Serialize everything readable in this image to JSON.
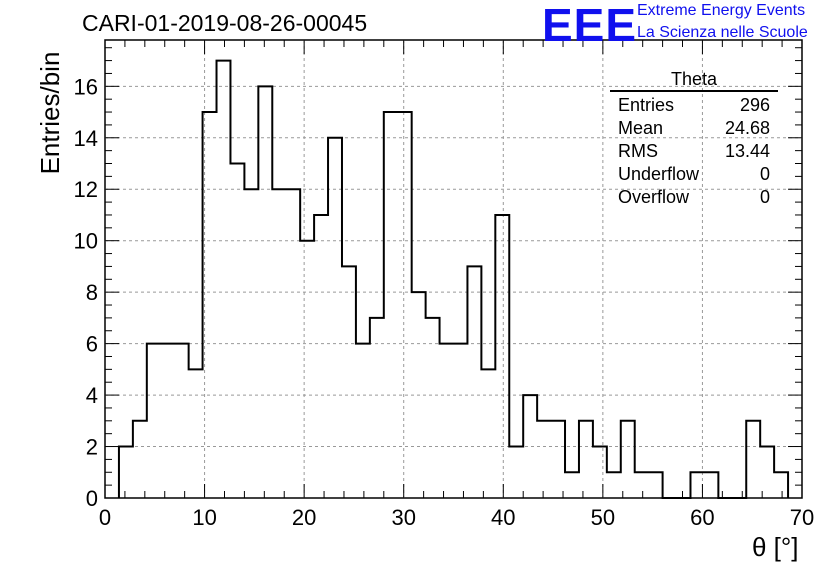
{
  "title": "CARI-01-2019-08-26-00045",
  "logo": {
    "mark": "EEE",
    "line1": "Extreme Energy Events",
    "line2": "La Scienza nelle Scuole"
  },
  "stats": {
    "name": "Theta",
    "rows": [
      {
        "label": "Entries",
        "value": "296"
      },
      {
        "label": "Mean",
        "value": "24.68"
      },
      {
        "label": "RMS",
        "value": "13.44"
      },
      {
        "label": "Underflow",
        "value": "0"
      },
      {
        "label": "Overflow",
        "value": "0"
      }
    ]
  },
  "chart_data": {
    "type": "bar",
    "style": "step-histogram",
    "title": "CARI-01-2019-08-26-00045",
    "xlabel": "θ [°]",
    "ylabel": "Entries/bin",
    "xlim": [
      0,
      70
    ],
    "ylim": [
      0,
      17.8
    ],
    "xticks": [
      0,
      10,
      20,
      30,
      40,
      50,
      60,
      70
    ],
    "yticks": [
      0,
      2,
      4,
      6,
      8,
      10,
      12,
      14,
      16
    ],
    "grid": true,
    "bin_edges": [
      1.4,
      2.8,
      4.2,
      5.6,
      7.0,
      8.4,
      9.8,
      11.2,
      12.6,
      14.0,
      15.4,
      16.8,
      18.2,
      19.6,
      21.0,
      22.4,
      23.8,
      25.2,
      26.6,
      28.0,
      29.4,
      30.8,
      32.2,
      33.6,
      35.0,
      36.4,
      37.8,
      39.2,
      40.6,
      42.0,
      43.4,
      44.8,
      46.2,
      47.6,
      49.0,
      50.4,
      51.8,
      53.2,
      54.6,
      56.0,
      57.4,
      58.8,
      60.2,
      61.6,
      63.0,
      64.4,
      65.8,
      67.2,
      68.6
    ],
    "values": [
      2,
      3,
      6,
      6,
      6,
      5,
      15,
      17,
      13,
      12,
      16,
      12,
      12,
      10,
      11,
      14,
      9,
      6,
      7,
      15,
      15,
      8,
      7,
      6,
      6,
      9,
      5,
      11,
      2,
      4,
      3,
      3,
      1,
      3,
      2,
      1,
      3,
      1,
      1,
      0,
      0,
      1,
      1,
      0,
      0,
      3,
      2,
      1
    ]
  }
}
